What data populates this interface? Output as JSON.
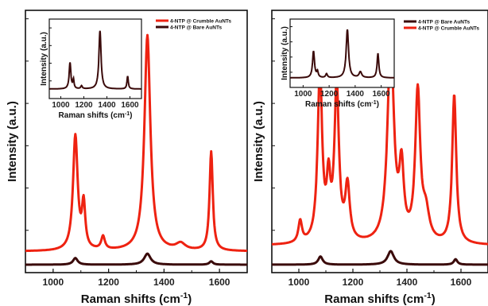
{
  "chart_data": [
    {
      "type": "line",
      "panel": "left",
      "xlabel": "Raman shifts (cm",
      "xlabel_sup": "-1",
      "xlabel_suffix": ")",
      "ylabel": "Intensity (a.u.)",
      "xlim": [
        900,
        1700
      ],
      "x_ticks": [
        "1000",
        "1200",
        "1400",
        "1600"
      ],
      "legend": {
        "position": "top-right",
        "entries": [
          "4-NTP @ Crumble AuNTs",
          "4-NTP @ Bare AuNTs"
        ]
      },
      "series": [
        {
          "name": "4-NTP @ Crumble AuNTs",
          "color": "#ee2211",
          "baseline": 0.06,
          "peaks": [
            [
              1080,
              0.52,
              10
            ],
            [
              1110,
              0.2,
              7
            ],
            [
              1180,
              0.06,
              8
            ],
            [
              1340,
              0.98,
              13
            ],
            [
              1460,
              0.03,
              20
            ],
            [
              1570,
              0.45,
              7
            ]
          ]
        },
        {
          "name": "4-NTP @ Bare AuNTs",
          "color": "#3a0a0a",
          "baseline": 0.0,
          "peaks": [
            [
              1080,
              0.03,
              10
            ],
            [
              1340,
              0.05,
              14
            ],
            [
              1570,
              0.015,
              8
            ]
          ]
        }
      ],
      "inset": {
        "xlabel": "Raman shifts (cm",
        "xlabel_sup": "-1",
        "xlabel_suffix": ")",
        "ylabel": "Intensity (a.u.)",
        "xlim": [
          900,
          1700
        ],
        "x_ticks": [
          "1000",
          "1200",
          "1400",
          "1600"
        ],
        "series": {
          "name": "4-NTP @ Bare AuNTs",
          "color": "#3a0a0a",
          "peaks": [
            [
              1080,
              0.45,
              9
            ],
            [
              1110,
              0.15,
              6
            ],
            [
              1180,
              0.05,
              8
            ],
            [
              1340,
              1.0,
              11
            ],
            [
              1580,
              0.22,
              7
            ]
          ]
        }
      }
    },
    {
      "type": "line",
      "panel": "right",
      "xlabel": "Raman shifts (cm",
      "xlabel_sup": "-1",
      "xlabel_suffix": ")",
      "ylabel": "Intensity (a.u.)",
      "xlim": [
        900,
        1700
      ],
      "x_ticks": [
        "1000",
        "1200",
        "1400",
        "1600"
      ],
      "legend": {
        "position": "top-right",
        "entries": [
          "4-NTP @ Bare AuNTs",
          "4-NTP @ Crumble AuNTs"
        ]
      },
      "series": [
        {
          "name": "4-NTP @ Bare AuNTs",
          "color": "#3a0a0a",
          "baseline": 0.0,
          "peaks": [
            [
              1080,
              0.03,
              10
            ],
            [
              1340,
              0.05,
              14
            ],
            [
              1580,
              0.02,
              8
            ]
          ]
        },
        {
          "name": "4-NTP @ Crumble AuNTs",
          "color": "#ee2211",
          "baseline": 0.07,
          "peaks": [
            [
              1005,
              0.08,
              8
            ],
            [
              1078,
              0.63,
              10
            ],
            [
              1110,
              0.2,
              8
            ],
            [
              1140,
              0.57,
              10
            ],
            [
              1180,
              0.2,
              10
            ],
            [
              1340,
              0.75,
              14
            ],
            [
              1380,
              0.25,
              10
            ],
            [
              1440,
              0.55,
              11
            ],
            [
              1470,
              0.1,
              15
            ],
            [
              1575,
              0.55,
              9
            ]
          ]
        }
      ],
      "inset": {
        "xlabel": "Raman shifts (cm",
        "xlabel_sup": "-1",
        "xlabel_suffix": ")",
        "ylabel": "Intensity (a.u.)",
        "xlim": [
          900,
          1700
        ],
        "x_ticks": [
          "1000",
          "1200",
          "1400",
          "1600"
        ],
        "series": {
          "name": "4-NTP @ Bare AuNTs",
          "color": "#3a0a0a",
          "peaks": [
            [
              1080,
              0.55,
              9
            ],
            [
              1110,
              0.12,
              7
            ],
            [
              1180,
              0.08,
              8
            ],
            [
              1340,
              1.0,
              11
            ],
            [
              1440,
              0.12,
              12
            ],
            [
              1575,
              0.5,
              8
            ]
          ]
        }
      }
    }
  ]
}
